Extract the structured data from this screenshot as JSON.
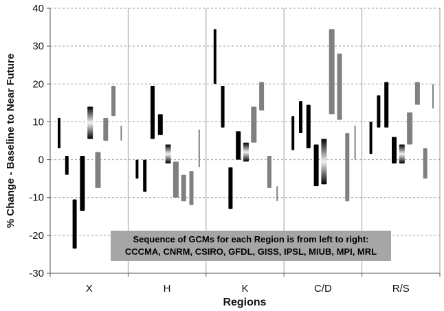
{
  "chart_data": {
    "type": "bar",
    "subtype": "floating-range",
    "categories": [
      "X",
      "H",
      "K",
      "C/D",
      "R/S"
    ],
    "gcm_order": [
      "CCCMA",
      "CNRM",
      "CSIRO",
      "GFDL",
      "GISS",
      "IPSL",
      "MIUB",
      "MPI",
      "MRL"
    ],
    "xlabel": "Regions",
    "ylabel": "% Change - Baseline to Near Future",
    "ylim": [
      -30,
      40
    ],
    "yticks": [
      -30,
      -20,
      -10,
      0,
      10,
      20,
      30,
      40
    ],
    "grid": "horizontal dashed",
    "annotation": {
      "line1": "Sequence of GCMs for each Region is from left to right:",
      "line2": "CCCMA, CNRM, CSIRO, GFDL, GISS, IPSL, MIUB, MPI, MRL"
    },
    "colors": {
      "black": "#000000",
      "gray": "#808080",
      "gradient_light": "#f2f2f2",
      "note_bg": "#a6a6a6"
    },
    "series": [
      {
        "name": "CCCMA",
        "ranges": [
          [
            3,
            11
          ],
          [
            -5,
            0
          ],
          [
            20,
            34.5
          ],
          [
            2.5,
            11.5
          ],
          [
            1.5,
            10
          ]
        ]
      },
      {
        "name": "CNRM",
        "ranges": [
          [
            -4,
            1
          ],
          [
            -8.5,
            0
          ],
          [
            8.5,
            19.5
          ],
          [
            7,
            15.5
          ],
          [
            8.5,
            17
          ]
        ]
      },
      {
        "name": "CSIRO",
        "ranges": [
          [
            -23.5,
            -10.5
          ],
          [
            5.5,
            19.5
          ],
          [
            -13,
            -2
          ],
          [
            3,
            14.5
          ],
          [
            8.5,
            20.5
          ]
        ]
      },
      {
        "name": "GFDL",
        "ranges": [
          [
            -13.5,
            1
          ],
          [
            6.5,
            12
          ],
          [
            0,
            7.5
          ],
          [
            -7,
            4
          ],
          [
            -1,
            6
          ]
        ]
      },
      {
        "name": "GISS",
        "ranges": [
          [
            5.5,
            14
          ],
          [
            -1,
            4
          ],
          [
            -0.5,
            4.5
          ],
          [
            -6.5,
            5.5
          ],
          [
            -1,
            4
          ]
        ]
      },
      {
        "name": "IPSL",
        "ranges": [
          [
            -7.5,
            2
          ],
          [
            -10,
            -0.5
          ],
          [
            4.5,
            14
          ],
          [
            12,
            34.5
          ],
          [
            4,
            12.5
          ]
        ]
      },
      {
        "name": "MIUB",
        "ranges": [
          [
            5,
            11
          ],
          [
            -11,
            -4
          ],
          [
            13,
            20.5
          ],
          [
            10.5,
            28
          ],
          [
            14.5,
            20.5
          ]
        ]
      },
      {
        "name": "MPI",
        "ranges": [
          [
            11.5,
            19.5
          ],
          [
            -12,
            -3
          ],
          [
            -7.5,
            1
          ],
          [
            -11,
            7
          ],
          [
            -5,
            3
          ]
        ]
      },
      {
        "name": "MRL",
        "ranges": [
          [
            5,
            9
          ],
          [
            -2,
            8
          ],
          [
            -11,
            -7
          ],
          [
            0,
            9
          ],
          [
            13.5,
            20
          ]
        ]
      }
    ]
  }
}
